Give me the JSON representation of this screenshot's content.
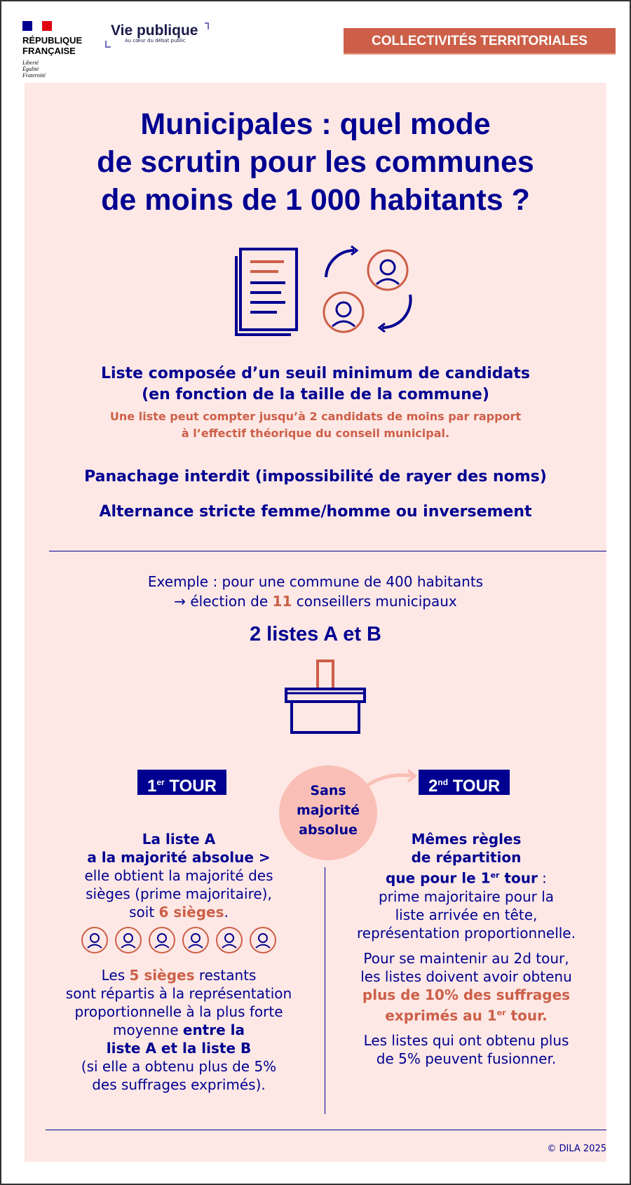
{
  "header": {
    "republique": [
      "RÉPUBLIQUE",
      "FRANÇAISE"
    ],
    "motto": [
      "Liberté",
      "Égalité",
      "Fraternité"
    ],
    "vie_publique": "Vie publique",
    "vie_publique_tagline": "Au cœur du débat public",
    "category": "COLLECTIVITÉS TERRITORIALES"
  },
  "title": [
    "Municipales : quel mode",
    "de scrutin pour les communes",
    "de moins de 1 000 habitants ?"
  ],
  "rules": {
    "liste": [
      "Liste composée d’un seuil minimum de candidats",
      "(en fonction de la taille de la commune)"
    ],
    "liste_note": [
      "Une liste peut compter jusqu’à 2 candidats de moins par rapport",
      "à l’effectif théorique du conseil municipal."
    ],
    "panachage": "Panachage interdit (impossibilité de rayer des noms)",
    "alternance": "Alternance stricte femme/homme ou inversement"
  },
  "example": {
    "line1": "Exemple : pour une commune de 400 habitants",
    "line2_pre": "→ élection de ",
    "line2_num": "11",
    "line2_post": " conseillers municipaux",
    "lists": "2 listes A et B"
  },
  "tour1": {
    "num": "1",
    "sup": "er",
    "label": " TOUR"
  },
  "tour2": {
    "num": "2",
    "sup": "nd",
    "label": " TOUR"
  },
  "circle": [
    "Sans",
    "majorité",
    "absolue"
  ],
  "left": {
    "b1": "La liste A",
    "b2": "a la majorité absolue >",
    "l3": "elle obtient la majorité des",
    "l4": "sièges (prime majoritaire),",
    "l5_pre": "soit ",
    "l5_red": "6 sièges",
    "l5_post": ".",
    "seat_count": 6,
    "p2_pre": "Les ",
    "p2_red": "5 sièges",
    "p2_post": " restants",
    "p2_l2": "sont répartis à la représentation",
    "p2_l3": "proportionnelle à la plus forte",
    "p2_l4_pre": "moyenne ",
    "p2_l4_b": "entre la",
    "p2_l5": "liste A et la liste B",
    "p2_l6": "(si elle a obtenu plus de 5%",
    "p2_l7": "des suffrages exprimés)."
  },
  "right": {
    "b1": "Mêmes règles",
    "b2": "de répartition",
    "b3_pre": "que pour le 1",
    "b3_sup": "er",
    "b3_post": " tour",
    "b3_colon": " :",
    "l4": "prime majoritaire pour la",
    "l5": "liste arrivée en tête,",
    "l6": "représentation proportionnelle.",
    "p2_l1": "Pour se maintenir au 2d tour,",
    "p2_l2": "les listes doivent avoir obtenu",
    "p2_red1": "plus de 10% des suffrages",
    "p2_red2_pre": "exprimés au 1",
    "p2_red2_sup": "er",
    "p2_red2_post": " tour.",
    "p3_l1": "Les listes qui ont obtenu plus",
    "p3_l2": "de 5% peuvent fusionner."
  },
  "footer": "© DILA 2025",
  "colors": {
    "navy": "#000091",
    "accent": "#cd5f48",
    "background": "#fde8e5",
    "circle": "#f9bfb6"
  }
}
